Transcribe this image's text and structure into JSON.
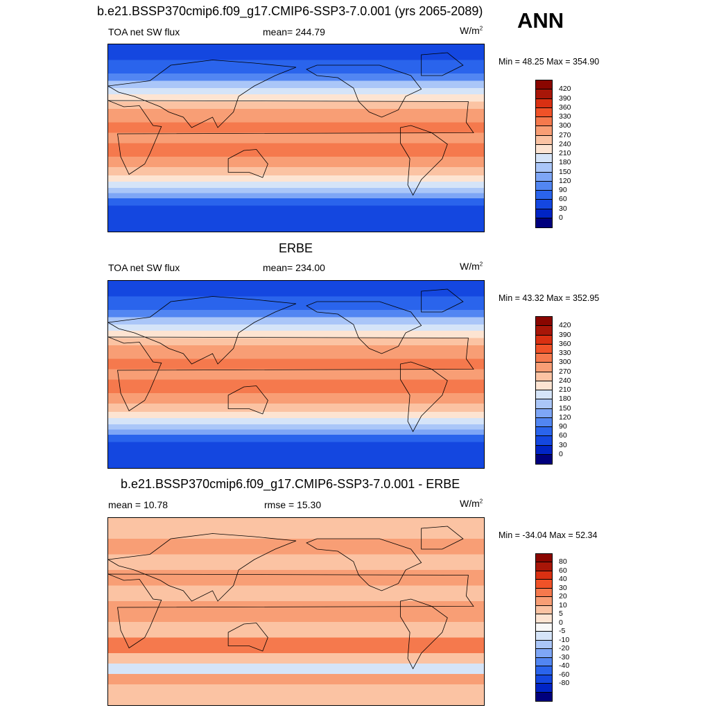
{
  "season": "ANN",
  "colors": {
    "abs_scale": [
      "#00007d",
      "#0024c5",
      "#1447e0",
      "#2a64ec",
      "#5286f2",
      "#7ea6f6",
      "#aac6f8",
      "#d5e4f8",
      "#fde4d2",
      "#fbc3a3",
      "#f89e75",
      "#f5794d",
      "#f05228",
      "#d93012",
      "#a81608",
      "#8a0600"
    ],
    "diff_scale": [
      "#00007d",
      "#0024c5",
      "#1447e0",
      "#2a64ec",
      "#5286f2",
      "#7ea6f6",
      "#aac6f8",
      "#d5e4f8",
      "#f8f8f8",
      "#fde4d2",
      "#fbc3a3",
      "#f89e75",
      "#f5794d",
      "#f05228",
      "#d93012",
      "#a81608",
      "#8a0600"
    ]
  },
  "panels": [
    {
      "title": "b.e21.BSSP370cmip6.f09_g17.CMIP6-SSP3-7.0.001 (yrs 2065-2089)",
      "left_label": "TOA net SW flux",
      "mid_label": "mean= 244.79",
      "units": "W/m",
      "units_sup": "2",
      "minmax": "Min =  48.25 Max = 354.90",
      "kind": "model",
      "ticks": [
        "420",
        "390",
        "360",
        "330",
        "300",
        "270",
        "240",
        "210",
        "180",
        "150",
        "120",
        "90",
        "60",
        "30",
        "0"
      ]
    },
    {
      "title": "ERBE",
      "left_label": "TOA net SW flux",
      "mid_label": "mean= 234.00",
      "units": "W/m",
      "units_sup": "2",
      "minmax": "Min =  43.32 Max = 352.95",
      "kind": "obs",
      "ticks": [
        "420",
        "390",
        "360",
        "330",
        "300",
        "270",
        "240",
        "210",
        "180",
        "150",
        "120",
        "90",
        "60",
        "30",
        "0"
      ]
    },
    {
      "title": "b.e21.BSSP370cmip6.f09_g17.CMIP6-SSP3-7.0.001 - ERBE",
      "left_label": "mean =  10.78",
      "mid_label": "rmse =  15.30",
      "units": "W/m",
      "units_sup": "2",
      "minmax": "Min = -34.04 Max =  52.34",
      "kind": "diff",
      "ticks": [
        "80",
        "60",
        "40",
        "30",
        "20",
        "10",
        "5",
        "0",
        "-5",
        "-10",
        "-20",
        "-30",
        "-40",
        "-60",
        "-80"
      ]
    }
  ]
}
